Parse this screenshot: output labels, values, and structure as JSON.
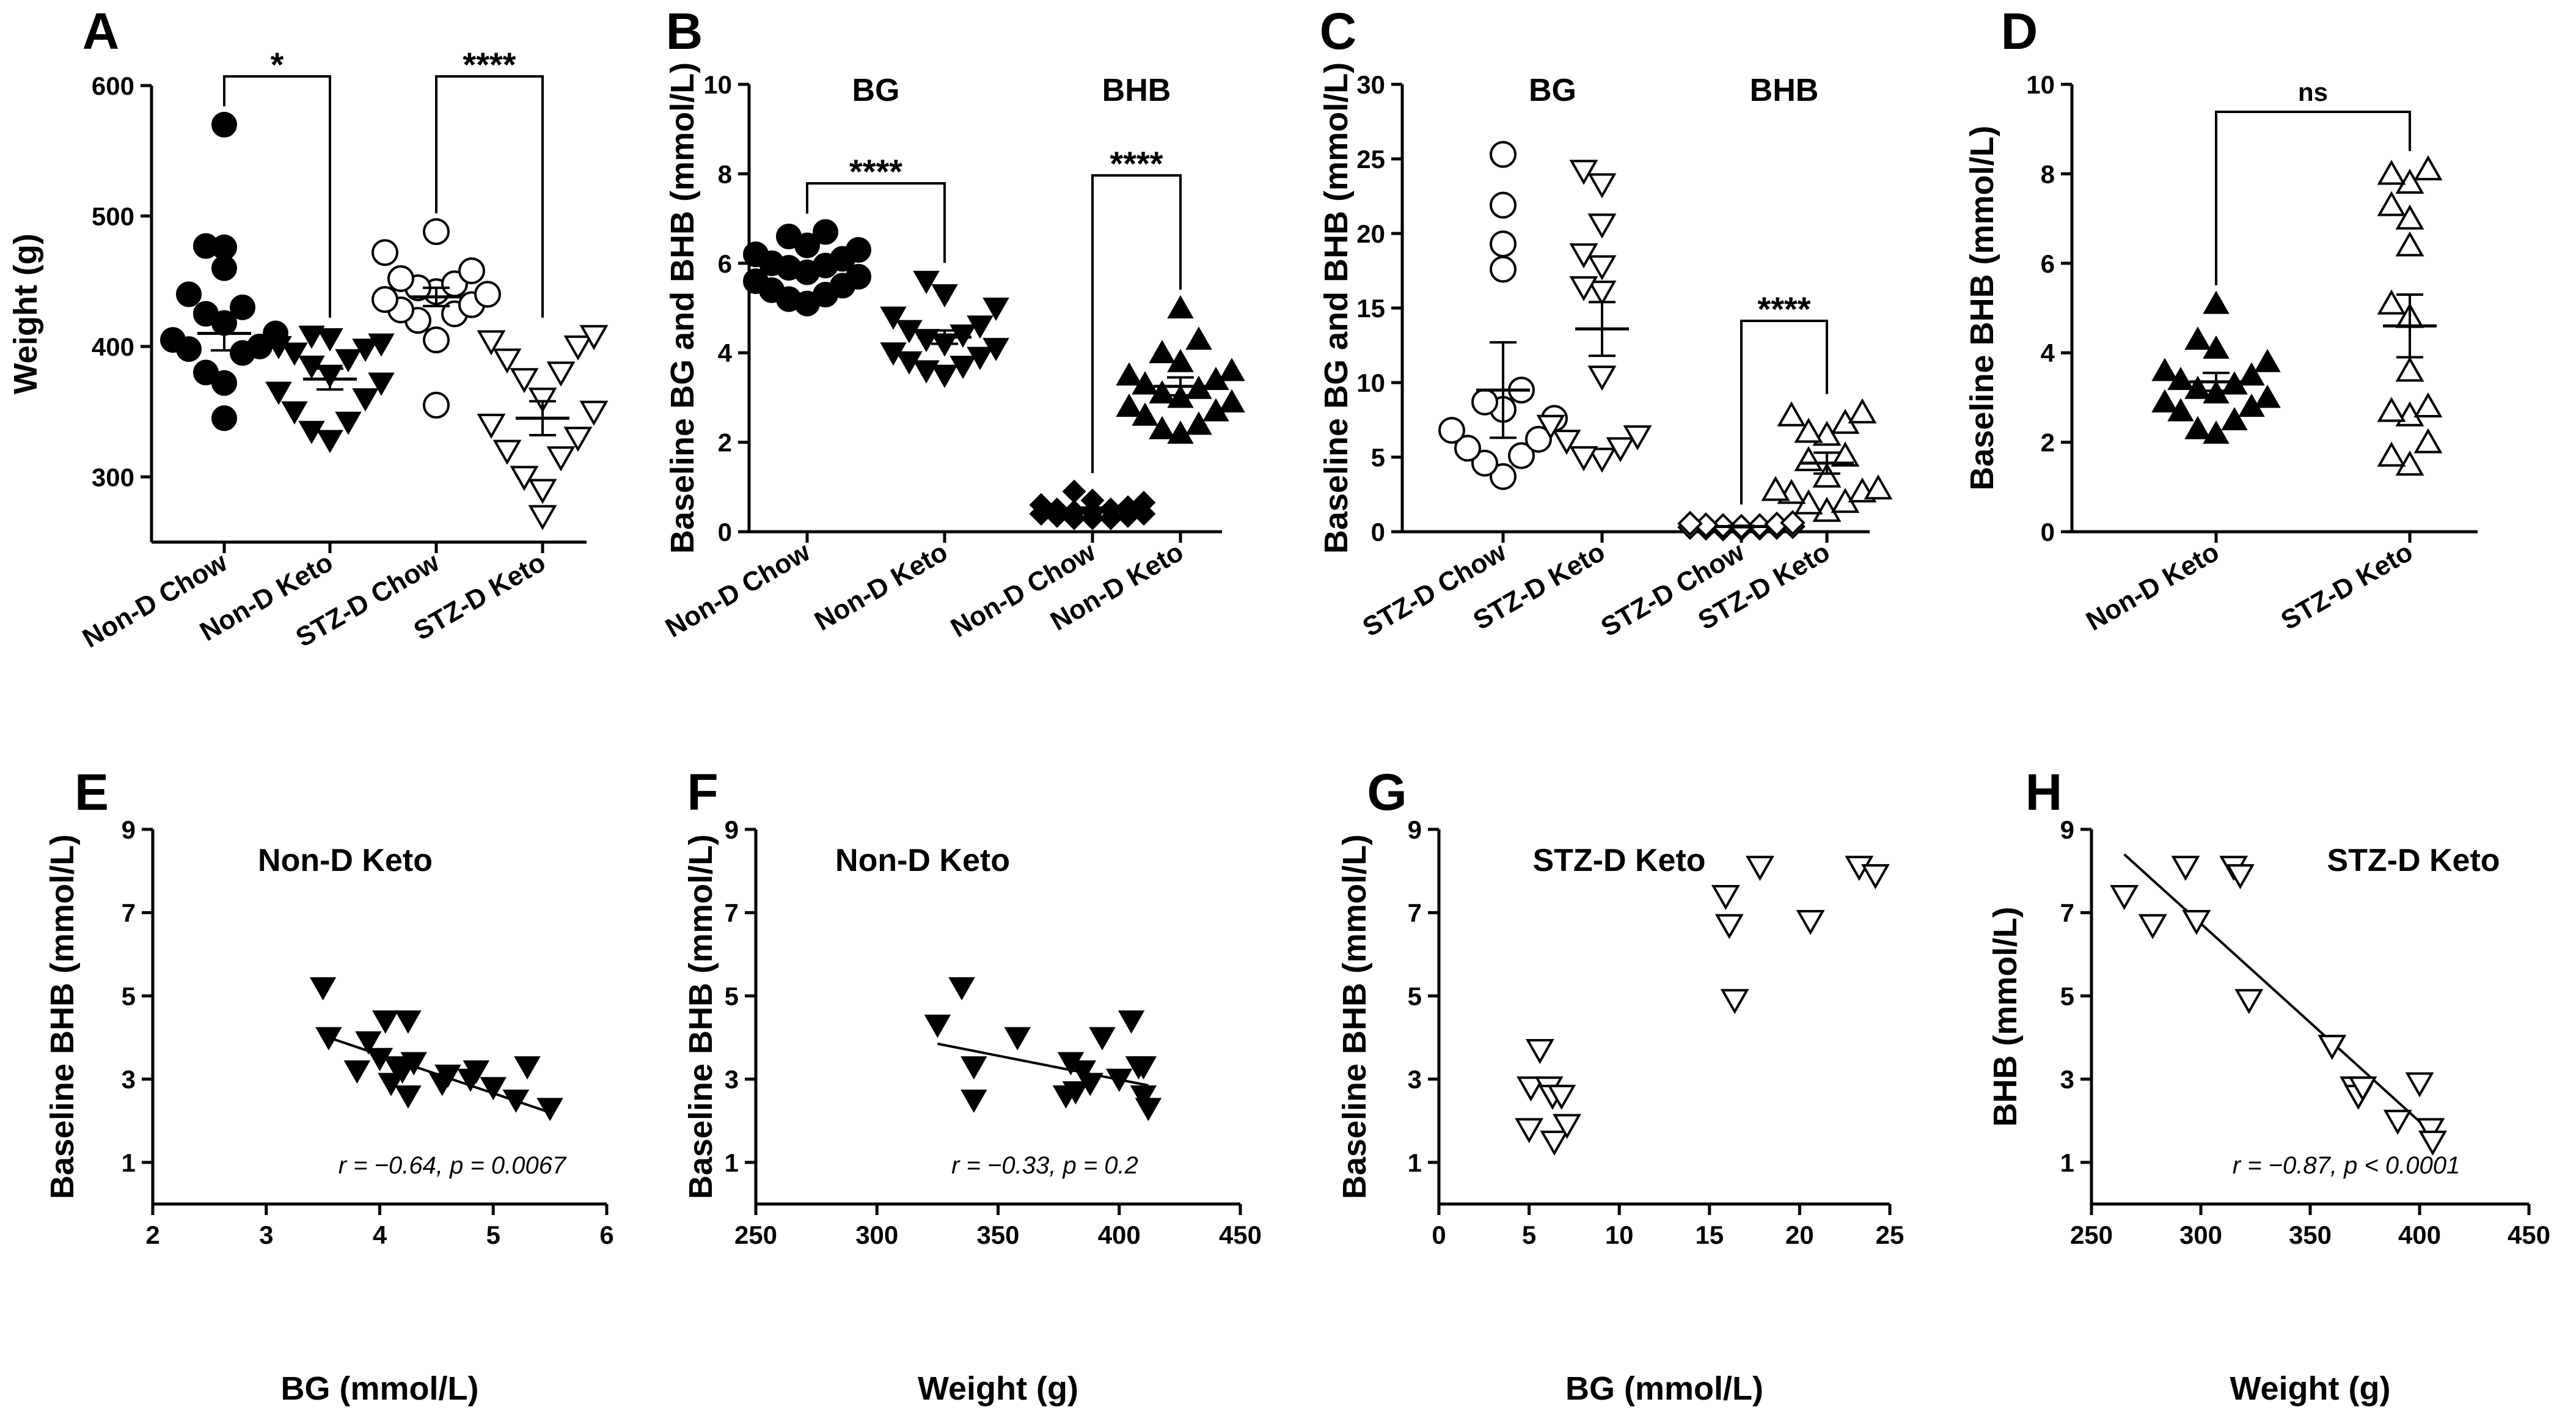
{
  "chart_data": [
    {
      "panel": "A",
      "type": "scatter",
      "ylabel": "Weight (g)",
      "ylim": [
        250,
        600
      ],
      "yticks": [
        300,
        400,
        500,
        600
      ],
      "categories": [
        "Non-D Chow",
        "Non-D Keto",
        "STZ-D Chow",
        "STZ-D Keto"
      ],
      "markers": [
        "filled-circle",
        "filled-triangle-down",
        "open-circle",
        "open-triangle-down"
      ],
      "series": [
        {
          "name": "Non-D Chow",
          "mean": 410,
          "sem": 13,
          "values": [
            570,
            477,
            476,
            460,
            440,
            430,
            425,
            418,
            410,
            405,
            400,
            398,
            395,
            380,
            372,
            345
          ]
        },
        {
          "name": "Non-D Keto",
          "mean": 375,
          "sem": 8,
          "values": [
            408,
            406,
            402,
            400,
            398,
            395,
            390,
            385,
            378,
            372,
            365,
            360,
            350,
            342,
            335,
            328
          ]
        },
        {
          "name": "STZ-D Chow",
          "mean": 438,
          "sem": 7,
          "values": [
            488,
            472,
            458,
            452,
            448,
            445,
            442,
            440,
            436,
            432,
            428,
            425,
            420,
            405,
            355
          ]
        },
        {
          "name": "STZ-D Keto",
          "mean": 345,
          "sem": 13,
          "values": [
            408,
            404,
            400,
            390,
            380,
            375,
            360,
            350,
            340,
            330,
            320,
            315,
            300,
            290,
            270
          ]
        }
      ],
      "brackets": [
        {
          "from": 0,
          "to": 1,
          "label": "*"
        },
        {
          "from": 2,
          "to": 3,
          "label": "****"
        }
      ]
    },
    {
      "panel": "B",
      "type": "scatter",
      "ylabel": "Baseline BG and BHB (mmol/L)",
      "ylim": [
        0,
        10
      ],
      "yticks": [
        0,
        2,
        4,
        6,
        8,
        10
      ],
      "categories": [
        "Non-D Chow",
        "Non-D Keto",
        "Non-D Chow",
        "Non-D Keto"
      ],
      "group_titles": [
        "BG",
        "BHB"
      ],
      "markers": [
        "filled-circle",
        "filled-triangle-down",
        "filled-diamond",
        "filled-triangle-up"
      ],
      "series": [
        {
          "name": "BG Non-D Chow",
          "mean": 5.85,
          "sem": 0.12,
          "values": [
            6.7,
            6.6,
            6.4,
            6.3,
            6.2,
            6.1,
            6.0,
            5.95,
            5.9,
            5.8,
            5.7,
            5.6,
            5.5,
            5.4,
            5.3,
            5.2,
            5.1
          ]
        },
        {
          "name": "BG Non-D Keto",
          "mean": 4.35,
          "sem": 0.15,
          "values": [
            5.6,
            5.3,
            5.0,
            4.8,
            4.6,
            4.5,
            4.4,
            4.3,
            4.2,
            4.1,
            4.0,
            3.9,
            3.8,
            3.7,
            3.6,
            3.5
          ]
        },
        {
          "name": "BHB Non-D Chow",
          "mean": 0.5,
          "sem": 0.04,
          "values": [
            0.9,
            0.7,
            0.65,
            0.6,
            0.55,
            0.5,
            0.5,
            0.45,
            0.45,
            0.4,
            0.4,
            0.35,
            0.35,
            0.3,
            0.3,
            0.3
          ]
        },
        {
          "name": "BHB Non-D Keto",
          "mean": 3.25,
          "sem": 0.2,
          "values": [
            5.0,
            4.3,
            4.0,
            3.8,
            3.6,
            3.5,
            3.4,
            3.3,
            3.2,
            3.1,
            3.0,
            2.9,
            2.8,
            2.7,
            2.6,
            2.4,
            2.3,
            2.2
          ]
        }
      ],
      "brackets": [
        {
          "from": 0,
          "to": 1,
          "label": "****"
        },
        {
          "from": 2,
          "to": 3,
          "label": "****"
        }
      ]
    },
    {
      "panel": "C",
      "type": "scatter",
      "ylabel": "Baseline BG and BHB (mmol/L)",
      "ylim": [
        0,
        30
      ],
      "yticks": [
        0,
        5,
        10,
        15,
        20,
        25,
        30
      ],
      "categories": [
        "STZ-D Chow",
        "STZ-D Keto",
        "STZ-D Chow",
        "STZ-D Keto"
      ],
      "group_titles": [
        "BG",
        "BHB"
      ],
      "markers": [
        "open-circle",
        "open-triangle-down",
        "open-diamond",
        "open-triangle-up"
      ],
      "series": [
        {
          "name": "BG STZ-D Chow",
          "mean": 9.5,
          "sem": 3.2,
          "values": [
            25.3,
            21.9,
            19.3,
            17.6,
            9.5,
            8.7,
            8.2,
            7.6,
            6.8,
            6.2,
            5.6,
            5.1,
            4.6,
            3.7
          ]
        },
        {
          "name": "BG STZ-D Keto",
          "mean": 13.6,
          "sem": 1.8,
          "values": [
            24.2,
            23.3,
            20.6,
            18.6,
            17.8,
            16.4,
            16.1,
            10.4,
            7.1,
            6.4,
            6.1,
            5.6,
            5.0,
            4.9
          ]
        },
        {
          "name": "BHB STZ-D Chow",
          "mean": 0.35,
          "sem": 0.05,
          "values": [
            0.6,
            0.55,
            0.5,
            0.45,
            0.4,
            0.4,
            0.35,
            0.35,
            0.3,
            0.3,
            0.25,
            0.25,
            0.2,
            0.2
          ]
        },
        {
          "name": "BHB STZ-D Keto",
          "mean": 4.6,
          "sem": 0.7,
          "values": [
            8.0,
            7.8,
            7.3,
            6.7,
            6.5,
            5.1,
            4.8,
            3.7,
            2.9,
            2.8,
            2.7,
            2.6,
            2.0,
            1.9,
            1.4
          ]
        }
      ],
      "brackets": [
        {
          "from": 2,
          "to": 3,
          "label": "****"
        }
      ]
    },
    {
      "panel": "D",
      "type": "scatter",
      "ylabel": "Baseline BHB (mmol/L)",
      "ylim": [
        0,
        10
      ],
      "yticks": [
        0,
        2,
        4,
        6,
        8,
        10
      ],
      "categories": [
        "Non-D Keto",
        "STZ-D Keto"
      ],
      "markers": [
        "filled-triangle-up",
        "open-triangle-up"
      ],
      "series": [
        {
          "name": "Non-D Keto",
          "mean": 3.35,
          "sem": 0.2,
          "values": [
            5.1,
            4.3,
            4.1,
            3.8,
            3.6,
            3.5,
            3.4,
            3.3,
            3.2,
            3.1,
            3.0,
            2.9,
            2.8,
            2.7,
            2.5,
            2.3,
            2.2
          ]
        },
        {
          "name": "STZ-D Keto",
          "mean": 4.6,
          "sem": 0.7,
          "values": [
            8.1,
            8.0,
            7.8,
            7.3,
            7.0,
            6.4,
            5.1,
            4.8,
            3.6,
            2.8,
            2.7,
            2.6,
            2.0,
            1.7,
            1.5
          ]
        }
      ],
      "brackets": [
        {
          "from": 0,
          "to": 1,
          "label": "ns"
        }
      ]
    },
    {
      "panel": "E",
      "type": "scatter",
      "title": "Non-D Keto",
      "xlabel": "BG (mmol/L)",
      "ylabel": "Baseline BHB (mmol/L)",
      "xlim": [
        2,
        6
      ],
      "xticks": [
        2,
        3,
        4,
        5,
        6
      ],
      "ylim": [
        0,
        9
      ],
      "yticks": [
        1,
        3,
        5,
        7,
        9
      ],
      "marker": "filled-triangle-down",
      "points": [
        [
          3.5,
          5.2
        ],
        [
          3.55,
          4.0
        ],
        [
          3.8,
          3.2
        ],
        [
          3.9,
          3.9
        ],
        [
          4.0,
          3.5
        ],
        [
          4.05,
          4.4
        ],
        [
          4.1,
          2.9
        ],
        [
          4.15,
          3.3
        ],
        [
          4.2,
          3.2
        ],
        [
          4.25,
          2.6
        ],
        [
          4.25,
          4.4
        ],
        [
          4.3,
          3.4
        ],
        [
          4.55,
          2.9
        ],
        [
          4.6,
          3.1
        ],
        [
          4.8,
          3.0
        ],
        [
          4.85,
          3.2
        ],
        [
          5.0,
          2.8
        ],
        [
          5.2,
          2.5
        ],
        [
          5.3,
          3.3
        ],
        [
          5.5,
          2.3
        ]
      ],
      "fit": {
        "x": [
          3.55,
          5.5
        ],
        "y": [
          4.0,
          2.2
        ]
      },
      "annotation": "r = −0.64, p = 0.0067"
    },
    {
      "panel": "F",
      "type": "scatter",
      "title": "Non-D Keto",
      "xlabel": "Weight (g)",
      "ylabel": "Baseline BHB (mmol/L)",
      "xlim": [
        250,
        450
      ],
      "xticks": [
        250,
        300,
        350,
        400,
        450
      ],
      "ylim": [
        0,
        9
      ],
      "yticks": [
        1,
        3,
        5,
        7,
        9
      ],
      "marker": "filled-triangle-down",
      "points": [
        [
          325,
          4.3
        ],
        [
          335,
          5.2
        ],
        [
          340,
          2.5
        ],
        [
          340,
          3.3
        ],
        [
          358,
          4.0
        ],
        [
          378,
          2.6
        ],
        [
          380,
          3.4
        ],
        [
          382,
          2.7
        ],
        [
          385,
          3.2
        ],
        [
          388,
          2.9
        ],
        [
          393,
          4.0
        ],
        [
          400,
          3.0
        ],
        [
          405,
          4.4
        ],
        [
          408,
          3.3
        ],
        [
          410,
          2.6
        ],
        [
          410,
          3.3
        ],
        [
          412,
          2.3
        ]
      ],
      "fit": {
        "x": [
          325,
          412
        ],
        "y": [
          3.85,
          2.85
        ]
      },
      "annotation": "r = −0.33, p = 0.2"
    },
    {
      "panel": "G",
      "type": "scatter",
      "title": "STZ-D Keto",
      "xlabel": "BG (mmol/L)",
      "ylabel": "Baseline BHB (mmol/L)",
      "xlim": [
        0,
        25
      ],
      "xticks": [
        0,
        5,
        10,
        15,
        20,
        25
      ],
      "ylim": [
        0,
        9
      ],
      "yticks": [
        1,
        3,
        5,
        7,
        9
      ],
      "marker": "open-triangle-down",
      "points": [
        [
          5.0,
          1.8
        ],
        [
          5.1,
          2.8
        ],
        [
          5.6,
          3.7
        ],
        [
          6.1,
          2.8
        ],
        [
          6.3,
          2.6
        ],
        [
          6.4,
          1.5
        ],
        [
          6.8,
          2.6
        ],
        [
          7.1,
          1.9
        ],
        [
          15.9,
          7.4
        ],
        [
          16.1,
          6.7
        ],
        [
          16.4,
          4.9
        ],
        [
          17.8,
          8.1
        ],
        [
          20.6,
          6.8
        ],
        [
          23.3,
          8.1
        ],
        [
          24.2,
          7.9
        ]
      ]
    },
    {
      "panel": "H",
      "type": "scatter",
      "title": "STZ-D Keto",
      "xlabel": "Weight (g)",
      "ylabel": "BHB (mmol/L)",
      "xlim": [
        250,
        450
      ],
      "xticks": [
        250,
        300,
        350,
        400,
        450
      ],
      "ylim": [
        0,
        9
      ],
      "yticks": [
        1,
        3,
        5,
        7,
        9
      ],
      "marker": "open-triangle-down",
      "points": [
        [
          265,
          7.4
        ],
        [
          278,
          6.7
        ],
        [
          293,
          8.1
        ],
        [
          298,
          6.8
        ],
        [
          315,
          8.1
        ],
        [
          318,
          7.9
        ],
        [
          322,
          4.9
        ],
        [
          360,
          3.8
        ],
        [
          370,
          2.8
        ],
        [
          372,
          2.6
        ],
        [
          374,
          2.8
        ],
        [
          390,
          2.0
        ],
        [
          400,
          2.9
        ],
        [
          405,
          1.8
        ],
        [
          406,
          1.5
        ]
      ],
      "fit": {
        "x": [
          265,
          408
        ],
        "y": [
          8.4,
          1.6
        ]
      },
      "annotation": "r = −0.87, p < 0.0001"
    }
  ]
}
